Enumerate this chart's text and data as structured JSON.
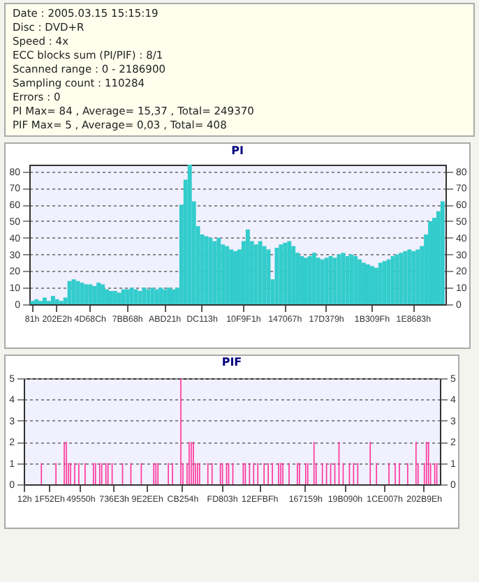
{
  "chart_data": [
    {
      "type": "bar",
      "title": "PI",
      "annotations": [
        "Date : 2005.03.15 15:15:19",
        "Disc : DVD+R",
        "Speed : 4x",
        "ECC blocks sum (PI/PIF) : 8/1",
        "Scanned range : 0 - 2186900",
        "Sampling count : 110284",
        "Errors : 0",
        "PI Max= 84 , Average= 15,37 , Total= 249370",
        "PIF Max= 5 , Average= 0,03 , Total= 408"
      ],
      "categories": [
        "81h",
        null,
        null,
        null,
        null,
        null,
        "202E2h",
        null,
        null,
        null,
        null,
        null,
        null,
        null,
        "4D68Ch",
        null,
        null,
        null,
        null,
        null,
        null,
        null,
        null,
        "7BB68h",
        null,
        null,
        null,
        null,
        null,
        null,
        null,
        null,
        "ABD21h",
        null,
        null,
        null,
        null,
        null,
        null,
        null,
        null,
        "DC113h",
        null,
        null,
        null,
        null,
        null,
        null,
        null,
        null,
        null,
        "10F9F1h",
        null,
        null,
        null,
        null,
        null,
        null,
        null,
        null,
        null,
        "147067h",
        null,
        null,
        null,
        null,
        null,
        null,
        null,
        null,
        null,
        "17D379h",
        null,
        null,
        null,
        null,
        null,
        null,
        null,
        null,
        null,
        null,
        "1B309Fh",
        null,
        null,
        null,
        null,
        null,
        null,
        null,
        null,
        null,
        "1E8683h",
        null,
        null,
        null,
        null,
        null,
        null,
        null
      ],
      "series": [
        {
          "color": "#33cccc",
          "values": [
            2,
            3,
            2,
            4,
            2,
            5,
            3,
            2,
            4,
            14,
            15,
            14,
            13,
            12,
            12,
            11,
            13,
            12,
            9,
            8,
            8,
            7,
            9,
            9,
            10,
            9,
            8,
            10,
            9,
            10,
            9,
            10,
            9,
            10,
            9,
            10,
            60,
            75,
            84,
            62,
            47,
            42,
            41,
            40,
            38,
            40,
            36,
            35,
            33,
            32,
            33,
            38,
            45,
            38,
            36,
            38,
            35,
            33,
            15,
            34,
            36,
            37,
            38,
            35,
            31,
            29,
            28,
            29,
            31,
            28,
            27,
            28,
            29,
            28,
            30,
            31,
            29,
            30,
            29,
            27,
            25,
            24,
            23,
            22,
            25,
            26,
            27,
            29,
            30,
            31,
            32,
            33,
            32,
            33,
            35,
            42,
            50,
            52,
            56,
            62
          ]
        }
      ],
      "ylim": [
        0,
        84
      ],
      "yticks": [
        0,
        10,
        20,
        30,
        40,
        50,
        60,
        70,
        80
      ],
      "y2lim": [
        0,
        84
      ],
      "y2ticks": [
        0,
        10,
        20,
        30,
        40,
        50,
        60,
        70,
        80
      ],
      "grid": "y"
    },
    {
      "type": "bar",
      "title": "PIF",
      "categories": [
        "12h",
        null,
        null,
        null,
        null,
        null,
        null,
        null,
        null,
        null,
        null,
        null,
        "1F52Eh",
        null,
        null,
        null,
        null,
        null,
        null,
        null,
        null,
        null,
        null,
        null,
        null,
        null,
        null,
        "49550h",
        null,
        null,
        null,
        null,
        null,
        null,
        null,
        null,
        null,
        null,
        null,
        null,
        null,
        null,
        null,
        "736E3h",
        null,
        null,
        null,
        null,
        null,
        null,
        null,
        null,
        null,
        null,
        null,
        null,
        null,
        null,
        null,
        "9E2EEh",
        null,
        null,
        null,
        null,
        null,
        null,
        null,
        null,
        null,
        null,
        null,
        null,
        null,
        null,
        null,
        null,
        "CB254h",
        null,
        null,
        null,
        null,
        null,
        null,
        null,
        null,
        null,
        null,
        null,
        null,
        null,
        null,
        null,
        null,
        null,
        null,
        "FD803h",
        null,
        null,
        null,
        null,
        null,
        null,
        null,
        null,
        null,
        null,
        null,
        null,
        null,
        null,
        null,
        null,
        null,
        "12EFBFh",
        null,
        null,
        null,
        null,
        null,
        null,
        null,
        null,
        null,
        null,
        null,
        null,
        null,
        null,
        null,
        null,
        null,
        null,
        null,
        null,
        null,
        "167159h",
        null,
        null,
        null,
        null,
        null,
        null,
        null,
        null,
        null,
        null,
        null,
        null,
        null,
        null,
        null,
        null,
        null,
        null,
        "19B090h",
        null,
        null,
        null,
        null,
        null,
        null,
        null,
        null,
        null,
        null,
        null,
        null,
        null,
        null,
        null,
        null,
        null,
        null,
        "1CE007h",
        null,
        null,
        null,
        null,
        null,
        null,
        null,
        null,
        null,
        null,
        null,
        null,
        null,
        null,
        null,
        null,
        null,
        null,
        "202B9Eh",
        null,
        null,
        null,
        null,
        null,
        null,
        null
      ],
      "series": [
        {
          "color": "#ff3399",
          "values": [
            0,
            0,
            0,
            0,
            0,
            0,
            0,
            0,
            1,
            0,
            0,
            0,
            0,
            0,
            0,
            1,
            0,
            0,
            0,
            2,
            2,
            1,
            1,
            0,
            1,
            0,
            1,
            0,
            0,
            1,
            0,
            0,
            0,
            1,
            1,
            0,
            1,
            1,
            0,
            1,
            1,
            0,
            1,
            0,
            0,
            0,
            0,
            1,
            0,
            0,
            0,
            1,
            0,
            0,
            0,
            0,
            1,
            0,
            0,
            0,
            0,
            0,
            1,
            1,
            1,
            0,
            0,
            0,
            0,
            1,
            0,
            1,
            0,
            0,
            0,
            5,
            1,
            0,
            1,
            2,
            2,
            2,
            1,
            1,
            1,
            0,
            0,
            0,
            1,
            0,
            1,
            0,
            0,
            0,
            1,
            1,
            0,
            1,
            1,
            0,
            1,
            0,
            0,
            0,
            0,
            1,
            1,
            0,
            1,
            0,
            1,
            0,
            1,
            0,
            0,
            1,
            0,
            1,
            0,
            1,
            0,
            0,
            1,
            1,
            1,
            0,
            0,
            1,
            0,
            0,
            0,
            1,
            1,
            0,
            0,
            1,
            1,
            0,
            0,
            2,
            1,
            0,
            0,
            1,
            0,
            1,
            0,
            1,
            0,
            1,
            0,
            2,
            0,
            1,
            0,
            0,
            1,
            0,
            1,
            0,
            1,
            0,
            0,
            0,
            0,
            0,
            2,
            0,
            0,
            1,
            0,
            0,
            0,
            0,
            0,
            1,
            0,
            0,
            1,
            0,
            1,
            0,
            0,
            0,
            1,
            0,
            0,
            0,
            2,
            1,
            0,
            0,
            1,
            2,
            2,
            1,
            0,
            1,
            1,
            0
          ]
        }
      ],
      "ylim": [
        0,
        5
      ],
      "yticks": [
        0,
        1,
        2,
        3,
        4,
        5
      ],
      "y2lim": [
        0,
        5
      ],
      "y2ticks": [
        0,
        1,
        2,
        3,
        4,
        5
      ],
      "grid": "y"
    }
  ]
}
